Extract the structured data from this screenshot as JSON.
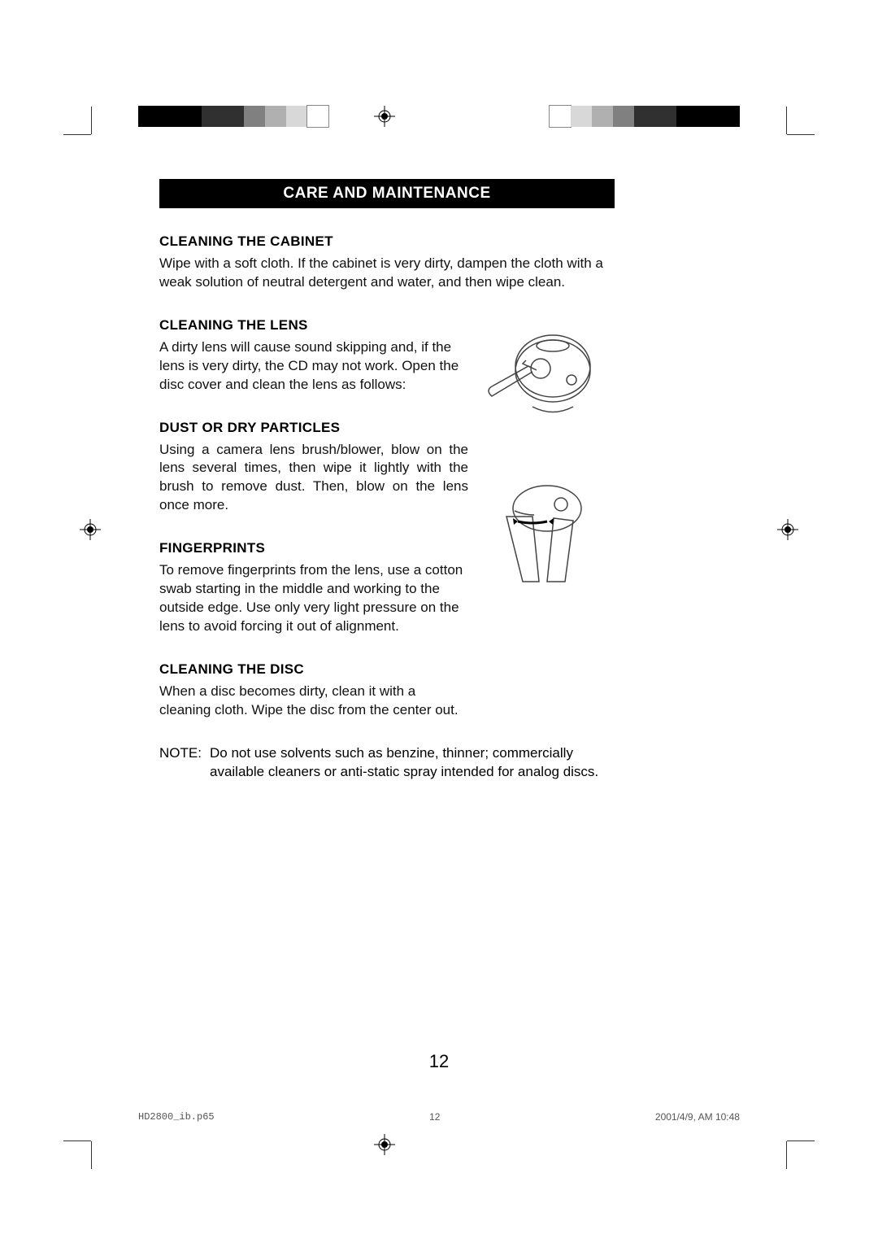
{
  "title": "CARE AND MAINTENANCE",
  "sections": [
    {
      "heading": "CLEANING THE CABINET",
      "body": "Wipe with a soft cloth. If the cabinet is very dirty, dampen the cloth with a weak solution of neutral detergent and water, and then wipe clean.",
      "narrow": false,
      "justify": false
    },
    {
      "heading": "CLEANING THE LENS",
      "body": "A dirty lens will cause sound skipping and, if the lens is very dirty, the CD may not work. Open the disc cover and clean the lens as follows:",
      "narrow": true,
      "justify": false
    },
    {
      "heading": "DUST OR DRY PARTICLES",
      "body": "Using a camera lens brush/blower, blow on the lens several times, then wipe it lightly with the brush to remove dust. Then, blow on the lens once more.",
      "narrow": true,
      "justify": true
    },
    {
      "heading": "FINGERPRINTS",
      "body": "To remove fingerprints from the lens, use a cotton swab starting in the middle and working to the outside edge. Use only very light pressure on the lens to avoid forcing it out of alignment.",
      "narrow": true,
      "justify": false
    },
    {
      "heading": "CLEANING THE DISC",
      "body": "When a disc becomes dirty, clean it with a cleaning cloth. Wipe the disc from the center out.",
      "narrow": true,
      "justify": false
    }
  ],
  "note_label": "NOTE:",
  "note_body": "Do not use solvents such as benzine, thinner; commercially available cleaners or anti-static spray intended for analog discs.",
  "page_number": "12",
  "footer": {
    "file": "HD2800_ib.p65",
    "page": "12",
    "timestamp": "2001/4/9, AM 10:48"
  },
  "colorbar": {
    "swatches": [
      "#000000",
      "#000000",
      "#000000",
      "#303030",
      "#303030",
      "#808080",
      "#b0b0b0",
      "#d8d8d8",
      "#ffffff"
    ]
  },
  "colors": {
    "title_bg": "#000000",
    "title_fg": "#ffffff",
    "text": "#111111",
    "page_bg": "#ffffff",
    "footer": "#555555",
    "cropmark": "#333333"
  },
  "typography": {
    "body_font": "Arial",
    "body_size_pt": 12,
    "heading_size_pt": 12,
    "title_size_pt": 13,
    "page_num_size_pt": 16,
    "footer_file_font": "Courier New",
    "footer_size_pt": 8
  }
}
